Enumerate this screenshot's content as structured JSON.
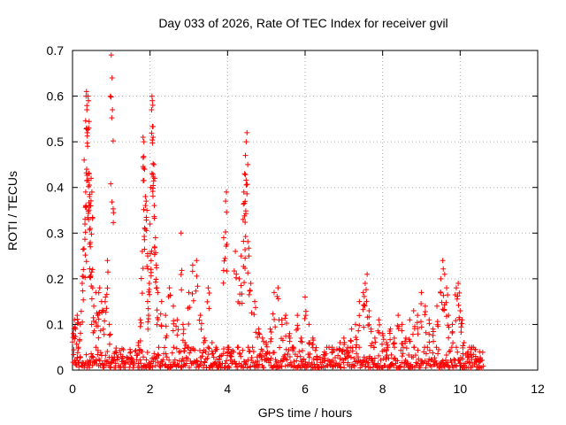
{
  "chart_data": {
    "type": "scatter",
    "title": "Day 033 of 2026, Rate Of TEC Index for receiver gvil",
    "xlabel": "GPS time / hours",
    "ylabel": "ROTI / TECUs",
    "xlim": [
      0,
      12
    ],
    "ylim": [
      0,
      0.7
    ],
    "x_ticks": [
      0,
      2,
      4,
      6,
      8,
      10,
      12
    ],
    "x_tick_labels": [
      "0",
      "2",
      "4",
      "6",
      "8",
      "10",
      "12"
    ],
    "y_ticks": [
      0,
      0.1,
      0.2,
      0.3,
      0.4,
      0.5,
      0.6,
      0.7
    ],
    "y_tick_labels": [
      "0",
      "0.1",
      "0.2",
      "0.3",
      "0.4",
      "0.5",
      "0.6",
      "0.7"
    ],
    "grid": true,
    "marker": "+",
    "color": "#ff0000",
    "series": [
      {
        "name": "ROTI",
        "points": [
          [
            0.02,
            0.08
          ],
          [
            0.05,
            0.11
          ],
          [
            0.08,
            0.09
          ],
          [
            0.12,
            0.12
          ],
          [
            0.15,
            0.05
          ],
          [
            0.2,
            0.1
          ],
          [
            0.25,
            0.19
          ],
          [
            0.28,
            0.22
          ],
          [
            0.3,
            0.46
          ],
          [
            0.32,
            0.32
          ],
          [
            0.34,
            0.39
          ],
          [
            0.35,
            0.6
          ],
          [
            0.36,
            0.61
          ],
          [
            0.37,
            0.57
          ],
          [
            0.38,
            0.52
          ],
          [
            0.39,
            0.49
          ],
          [
            0.4,
            0.6
          ],
          [
            0.41,
            0.59
          ],
          [
            0.42,
            0.53
          ],
          [
            0.43,
            0.43
          ],
          [
            0.44,
            0.38
          ],
          [
            0.45,
            0.31
          ],
          [
            0.46,
            0.27
          ],
          [
            0.47,
            0.36
          ],
          [
            0.48,
            0.42
          ],
          [
            0.5,
            0.39
          ],
          [
            0.52,
            0.18
          ],
          [
            0.55,
            0.14
          ],
          [
            0.6,
            0.17
          ],
          [
            0.65,
            0.12
          ],
          [
            0.7,
            0.18
          ],
          [
            0.75,
            0.15
          ],
          [
            0.8,
            0.13
          ],
          [
            0.85,
            0.16
          ],
          [
            0.9,
            0.24
          ],
          [
            0.95,
            0.1
          ],
          [
            1.0,
            0.69
          ],
          [
            1.02,
            0.64
          ],
          [
            1.03,
            0.57
          ],
          [
            1.1,
            0.04
          ],
          [
            1.3,
            0.03
          ],
          [
            1.5,
            0.04
          ],
          [
            1.7,
            0.06
          ],
          [
            1.75,
            0.11
          ],
          [
            1.8,
            0.26
          ],
          [
            1.82,
            0.51
          ],
          [
            1.84,
            0.5
          ],
          [
            1.86,
            0.44
          ],
          [
            1.88,
            0.38
          ],
          [
            1.9,
            0.37
          ],
          [
            1.92,
            0.35
          ],
          [
            1.94,
            0.25
          ],
          [
            1.96,
            0.12
          ],
          [
            1.98,
            0.19
          ],
          [
            2.0,
            0.32
          ],
          [
            2.02,
            0.4
          ],
          [
            2.04,
            0.57
          ],
          [
            2.05,
            0.6
          ],
          [
            2.06,
            0.59
          ],
          [
            2.07,
            0.58
          ],
          [
            2.08,
            0.51
          ],
          [
            2.1,
            0.45
          ],
          [
            2.12,
            0.42
          ],
          [
            2.14,
            0.29
          ],
          [
            2.16,
            0.23
          ],
          [
            2.2,
            0.17
          ],
          [
            2.3,
            0.15
          ],
          [
            2.4,
            0.12
          ],
          [
            2.5,
            0.18
          ],
          [
            2.6,
            0.14
          ],
          [
            2.7,
            0.11
          ],
          [
            2.8,
            0.3
          ],
          [
            2.85,
            0.1
          ],
          [
            2.9,
            0.06
          ],
          [
            3.0,
            0.17
          ],
          [
            3.1,
            0.23
          ],
          [
            3.2,
            0.24
          ],
          [
            3.3,
            0.12
          ],
          [
            3.4,
            0.07
          ],
          [
            3.5,
            0.18
          ],
          [
            3.6,
            0.06
          ],
          [
            3.7,
            0.05
          ],
          [
            3.8,
            0.03
          ],
          [
            3.9,
            0.29
          ],
          [
            3.95,
            0.37
          ],
          [
            3.97,
            0.39
          ],
          [
            4.0,
            0.05
          ],
          [
            4.1,
            0.04
          ],
          [
            4.2,
            0.26
          ],
          [
            4.3,
            0.2
          ],
          [
            4.35,
            0.25
          ],
          [
            4.4,
            0.33
          ],
          [
            4.42,
            0.39
          ],
          [
            4.44,
            0.43
          ],
          [
            4.46,
            0.47
          ],
          [
            4.48,
            0.5
          ],
          [
            4.5,
            0.52
          ],
          [
            4.52,
            0.45
          ],
          [
            4.55,
            0.25
          ],
          [
            4.6,
            0.19
          ],
          [
            4.7,
            0.15
          ],
          [
            4.8,
            0.09
          ],
          [
            4.9,
            0.07
          ],
          [
            5.0,
            0.06
          ],
          [
            5.1,
            0.09
          ],
          [
            5.2,
            0.17
          ],
          [
            5.3,
            0.18
          ],
          [
            5.4,
            0.11
          ],
          [
            5.5,
            0.12
          ],
          [
            5.6,
            0.08
          ],
          [
            5.7,
            0.05
          ],
          [
            5.8,
            0.12
          ],
          [
            5.9,
            0.07
          ],
          [
            6.0,
            0.16
          ],
          [
            6.1,
            0.1
          ],
          [
            6.2,
            0.07
          ],
          [
            6.3,
            0.03
          ],
          [
            6.5,
            0.04
          ],
          [
            6.7,
            0.05
          ],
          [
            6.9,
            0.06
          ],
          [
            7.0,
            0.07
          ],
          [
            7.1,
            0.05
          ],
          [
            7.2,
            0.09
          ],
          [
            7.3,
            0.1
          ],
          [
            7.4,
            0.15
          ],
          [
            7.5,
            0.17
          ],
          [
            7.55,
            0.19
          ],
          [
            7.6,
            0.21
          ],
          [
            7.65,
            0.13
          ],
          [
            7.7,
            0.09
          ],
          [
            7.8,
            0.07
          ],
          [
            7.9,
            0.11
          ],
          [
            8.0,
            0.08
          ],
          [
            8.1,
            0.06
          ],
          [
            8.2,
            0.09
          ],
          [
            8.3,
            0.07
          ],
          [
            8.4,
            0.12
          ],
          [
            8.5,
            0.1
          ],
          [
            8.6,
            0.07
          ],
          [
            8.7,
            0.11
          ],
          [
            8.8,
            0.13
          ],
          [
            8.9,
            0.12
          ],
          [
            9.0,
            0.17
          ],
          [
            9.1,
            0.14
          ],
          [
            9.2,
            0.11
          ],
          [
            9.3,
            0.09
          ],
          [
            9.4,
            0.14
          ],
          [
            9.5,
            0.2
          ],
          [
            9.55,
            0.24
          ],
          [
            9.6,
            0.21
          ],
          [
            9.65,
            0.18
          ],
          [
            9.7,
            0.12
          ],
          [
            9.8,
            0.1
          ],
          [
            9.9,
            0.18
          ],
          [
            9.95,
            0.19
          ],
          [
            10.0,
            0.13
          ],
          [
            10.05,
            0.11
          ],
          [
            10.1,
            0.06
          ],
          [
            10.2,
            0.04
          ],
          [
            10.3,
            0.05
          ],
          [
            10.4,
            0.03
          ],
          [
            10.5,
            0.04
          ]
        ],
        "baseline_band": {
          "x_range": [
            0,
            10.6
          ],
          "y_range": [
            0.005,
            0.05
          ]
        }
      }
    ]
  }
}
